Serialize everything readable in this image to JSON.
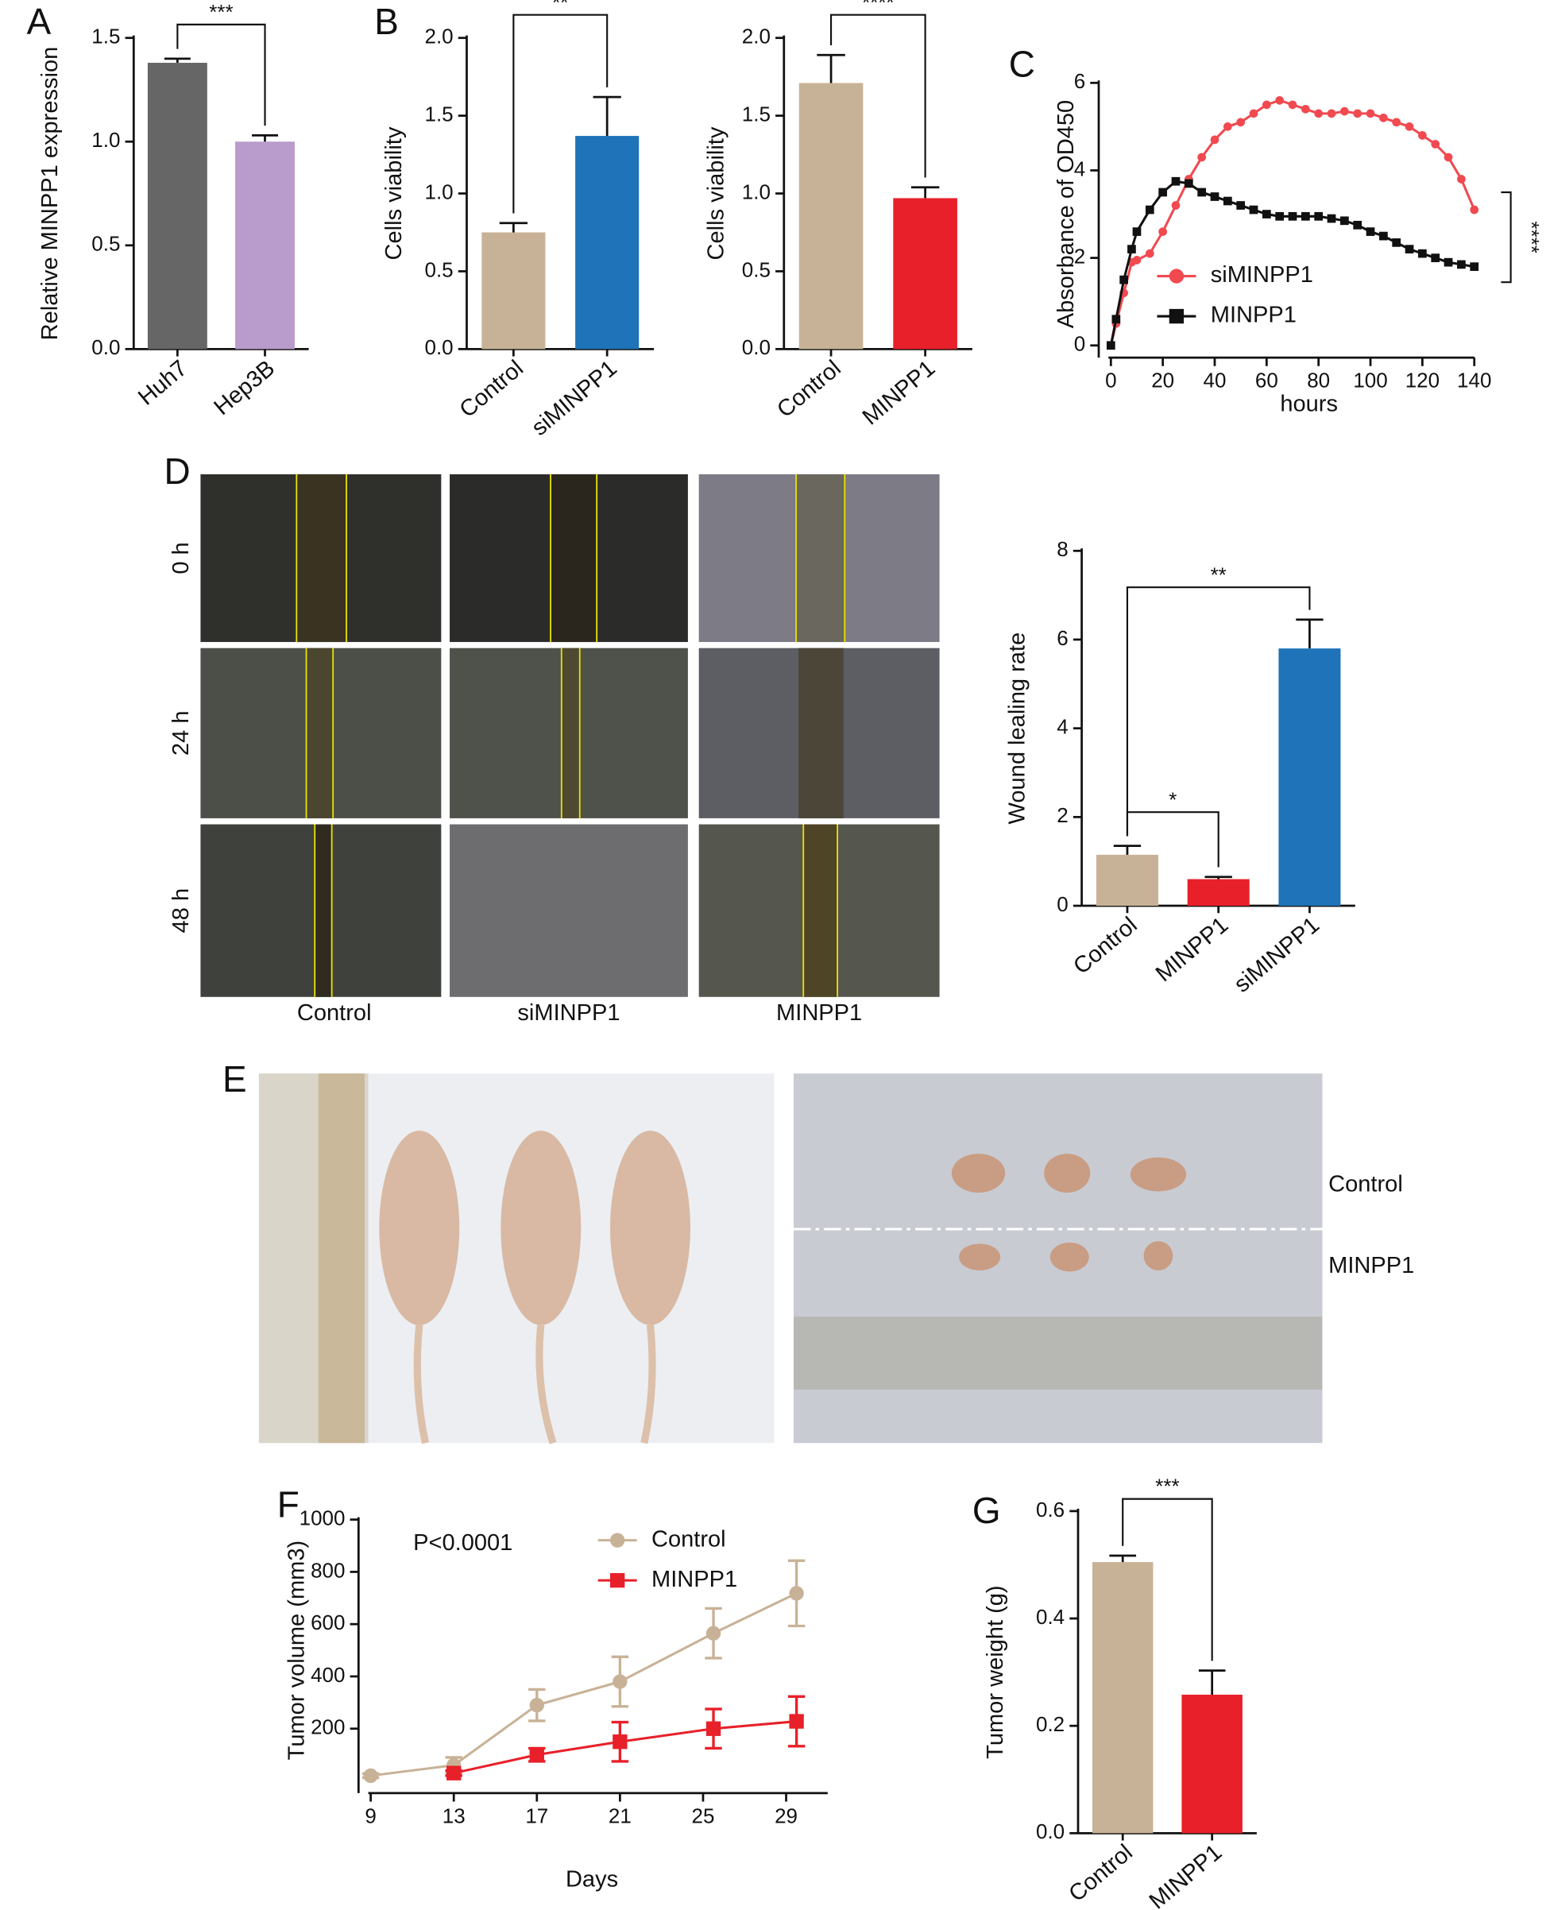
{
  "figure": {
    "panel_labels": [
      "A",
      "B",
      "C",
      "D",
      "E",
      "F",
      "G"
    ],
    "wound_assay": {
      "row_labels": [
        "0 h",
        "24 h",
        "48 h"
      ],
      "column_labels": [
        "Control",
        "siMINPP1",
        "MINPP1"
      ]
    },
    "tumor_photo": {
      "group_labels": [
        "Control",
        "MINPP1"
      ]
    }
  },
  "chart_data": [
    {
      "type": "bar",
      "ylabel": "Relative MINPP1 expression",
      "categories": [
        "Huh7",
        "Hep3B"
      ],
      "values": [
        1.38,
        1.0
      ],
      "errors": [
        0.02,
        0.03
      ],
      "colors": [
        "#666666",
        "#b99ccb"
      ],
      "ylim": [
        0,
        1.5
      ],
      "yticks": [
        {
          "value": 0,
          "label": "0.0"
        },
        0.5,
        {
          "value": 1,
          "label": "1.0"
        },
        1.5
      ],
      "significance": [
        {
          "label": "***",
          "pair": [
            "Huh7",
            "Hep3B"
          ]
        }
      ]
    },
    {
      "type": "bar",
      "ylabel": "Cells viability",
      "categories": [
        "Control",
        "siMINPP1"
      ],
      "values": [
        0.75,
        1.37
      ],
      "errors": [
        0.06,
        0.25
      ],
      "colors": [
        "#c8b297",
        "#1f73b8"
      ],
      "ylim": [
        0,
        2
      ],
      "yticks": [
        {
          "value": 0,
          "label": "0.0"
        },
        0.5,
        {
          "value": 1,
          "label": "1.0"
        },
        1.5,
        {
          "value": 2,
          "label": "2.0"
        }
      ],
      "significance": [
        {
          "label": "**",
          "pair": [
            "Control",
            "siMINPP1"
          ]
        }
      ]
    },
    {
      "type": "bar",
      "ylabel": "Cells viability",
      "categories": [
        "Control",
        "MINPP1"
      ],
      "values": [
        1.71,
        0.97
      ],
      "errors": [
        0.18,
        0.07
      ],
      "colors": [
        "#c8b297",
        "#e8202a"
      ],
      "ylim": [
        0,
        2
      ],
      "yticks": [
        {
          "value": 0,
          "label": "0.0"
        },
        0.5,
        {
          "value": 1,
          "label": "1.0"
        },
        1.5,
        {
          "value": 2,
          "label": "2.0"
        }
      ],
      "significance": [
        {
          "label": "****",
          "pair": [
            "Control",
            "MINPP1"
          ]
        }
      ]
    },
    {
      "type": "line",
      "xlabel": "hours",
      "ylabel": "Absorbance of OD450",
      "x": [
        0,
        2,
        5,
        8,
        10,
        15,
        20,
        25,
        30,
        35,
        40,
        45,
        50,
        55,
        60,
        65,
        70,
        75,
        80,
        85,
        90,
        95,
        100,
        105,
        110,
        115,
        120,
        125,
        130,
        135,
        140
      ],
      "series": [
        {
          "name": "siMINPP1",
          "color": "#f04a50",
          "marker": "circle",
          "values": [
            0,
            0.5,
            1.2,
            1.9,
            1.95,
            2.1,
            2.6,
            3.2,
            3.8,
            4.3,
            4.7,
            5.0,
            5.1,
            5.3,
            5.5,
            5.6,
            5.5,
            5.4,
            5.3,
            5.3,
            5.35,
            5.3,
            5.3,
            5.2,
            5.1,
            5.0,
            4.8,
            4.6,
            4.3,
            3.8,
            3.1
          ]
        },
        {
          "name": "MINPP1",
          "color": "#111111",
          "marker": "square",
          "values": [
            0,
            0.6,
            1.5,
            2.2,
            2.6,
            3.1,
            3.5,
            3.75,
            3.7,
            3.5,
            3.4,
            3.3,
            3.2,
            3.1,
            3.0,
            2.95,
            2.95,
            2.95,
            2.95,
            2.9,
            2.85,
            2.75,
            2.6,
            2.5,
            2.35,
            2.2,
            2.1,
            2.0,
            1.9,
            1.85,
            1.8
          ]
        }
      ],
      "xlim": [
        0,
        140
      ],
      "xticks": [
        0,
        20,
        40,
        60,
        80,
        100,
        120,
        140
      ],
      "ylim": [
        0,
        6
      ],
      "yticks": [
        0,
        2,
        4,
        6
      ],
      "significance": "****"
    },
    {
      "type": "bar",
      "ylabel": "Wound lealing rate",
      "categories": [
        "Control",
        "MINPP1",
        "siMINPP1"
      ],
      "values": [
        1.15,
        0.6,
        5.8
      ],
      "errors": [
        0.2,
        0.05,
        0.65
      ],
      "colors": [
        "#c8b297",
        "#e8202a",
        "#1f73b8"
      ],
      "ylim": [
        0,
        8
      ],
      "yticks": [
        0,
        2,
        4,
        6,
        8
      ],
      "significance": [
        {
          "label": "**",
          "pair": [
            "Control",
            "siMINPP1"
          ]
        },
        {
          "label": "*",
          "pair": [
            "Control",
            "MINPP1"
          ]
        }
      ]
    },
    {
      "type": "line",
      "xlabel": "Days",
      "ylabel": "Tumor volume (mm3)",
      "annotation": "P<0.0001",
      "x": [
        9,
        13,
        17,
        21,
        25.5,
        29.5
      ],
      "series": [
        {
          "name": "Control",
          "color": "#c8b297",
          "marker": "circle",
          "values": [
            20,
            60,
            290,
            380,
            565,
            718
          ],
          "errors": [
            8,
            30,
            60,
            95,
            95,
            125
          ]
        },
        {
          "name": "MINPP1",
          "color": "#e8202a",
          "marker": "square",
          "values": [
            null,
            30,
            100,
            150,
            200,
            228
          ],
          "errors": [
            null,
            10,
            25,
            75,
            75,
            95
          ]
        }
      ],
      "xlim": [
        9,
        31
      ],
      "xticks": [
        9,
        13,
        17,
        21,
        25,
        29
      ],
      "ylim": [
        0,
        1000
      ],
      "yticks": [
        200,
        400,
        600,
        800,
        1000
      ]
    },
    {
      "type": "bar",
      "ylabel": "Tumor weight (g)",
      "categories": [
        "Control",
        "MINPP1"
      ],
      "values": [
        0.505,
        0.258
      ],
      "errors": [
        0.012,
        0.045
      ],
      "colors": [
        "#c8b297",
        "#e8202a"
      ],
      "ylim": [
        0,
        0.6
      ],
      "yticks": [
        {
          "value": 0,
          "label": "0.0"
        },
        0.2,
        0.4,
        0.6
      ],
      "significance": [
        {
          "label": "***",
          "pair": [
            "Control",
            "MINPP1"
          ]
        }
      ]
    }
  ]
}
